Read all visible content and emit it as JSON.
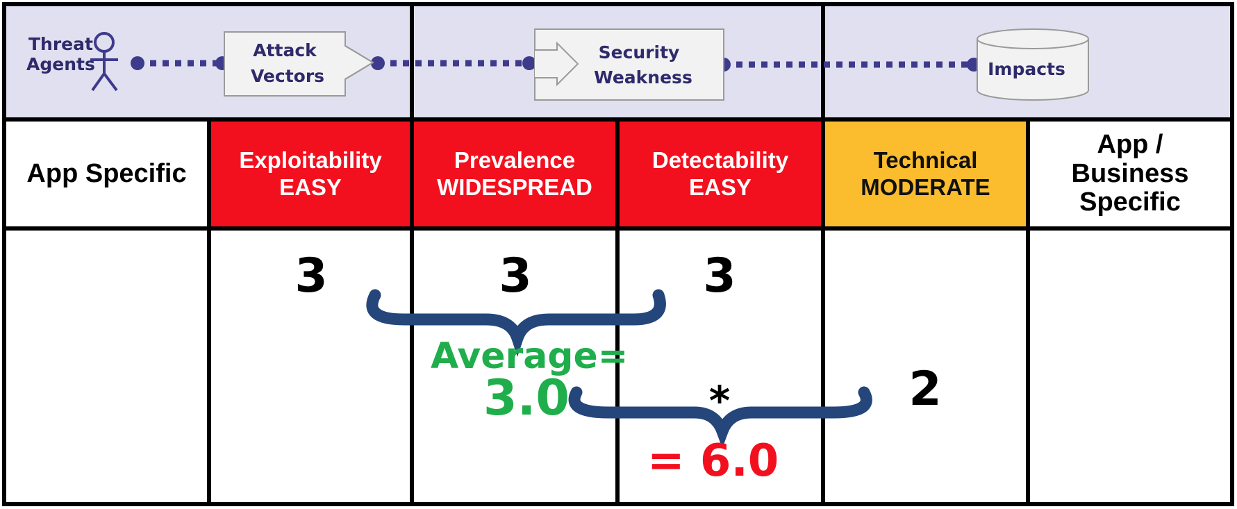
{
  "flow": {
    "threat_agents": [
      "Threat",
      "Agents"
    ],
    "attack_vectors": [
      "Attack",
      "Vectors"
    ],
    "security_weakness": [
      "Security",
      "Weakness"
    ],
    "impacts": "Impacts"
  },
  "headers": {
    "app_specific": "App Specific",
    "exploitability": {
      "name": "Exploitability",
      "level": "EASY"
    },
    "prevalence": {
      "name": "Prevalence",
      "level": "WIDESPREAD"
    },
    "detectability": {
      "name": "Detectability",
      "level": "EASY"
    },
    "technical": {
      "name": "Technical",
      "level": "MODERATE"
    },
    "business": [
      "App /",
      "Business",
      "Specific"
    ]
  },
  "scores": {
    "exploitability": "3",
    "prevalence": "3",
    "detectability": "3",
    "technical": "2"
  },
  "calculation": {
    "average_label": "Average=",
    "average_value": "3.0",
    "multiply": "*",
    "result": "= 6.0"
  },
  "colors": {
    "header_band": "#e1e0f0",
    "critical": "#f3101e",
    "moderate": "#fbbd2e",
    "brace": "#24467a",
    "average": "#1fae4b",
    "flow": "#3e3a8c"
  }
}
